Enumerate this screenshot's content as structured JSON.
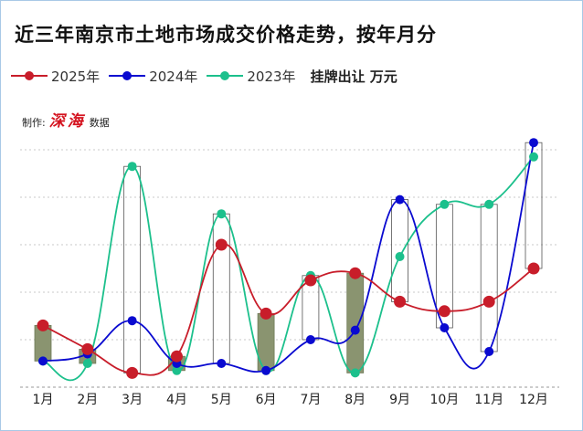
{
  "title": "近三年南京市土地市场成交价格走势，按年月分",
  "legend_note": "挂牌出让  万元",
  "credit": {
    "prefix": "制作:",
    "brand": "深海",
    "suffix": "数据"
  },
  "chart_data": {
    "type": "line",
    "title": "近三年南京市土地市场成交价格走势，按年月分",
    "xlabel": "",
    "ylabel": "",
    "ylim": [
      0,
      100
    ],
    "grid": true,
    "legend_position": "top-left",
    "categories": [
      "1月",
      "2月",
      "3月",
      "4月",
      "5月",
      "6月",
      "7月",
      "8月",
      "9月",
      "10月",
      "11月",
      "12月"
    ],
    "series": [
      {
        "name": "2025年",
        "color": "#c81d2a",
        "values": [
          26,
          16,
          6,
          13,
          60,
          31,
          45,
          48,
          36,
          32,
          36,
          50
        ]
      },
      {
        "name": "2024年",
        "color": "#0a0ad0",
        "values": [
          11,
          14,
          28,
          10,
          10,
          7,
          20,
          24,
          79,
          25,
          15,
          103
        ]
      },
      {
        "name": "2023年",
        "color": "#1cc08c",
        "values": [
          11,
          10,
          93,
          7,
          73,
          7,
          47,
          6,
          55,
          77,
          77,
          97
        ]
      }
    ],
    "range_boxes": "between min and max of the three series per month; filled when 2023年 is the minimum"
  }
}
